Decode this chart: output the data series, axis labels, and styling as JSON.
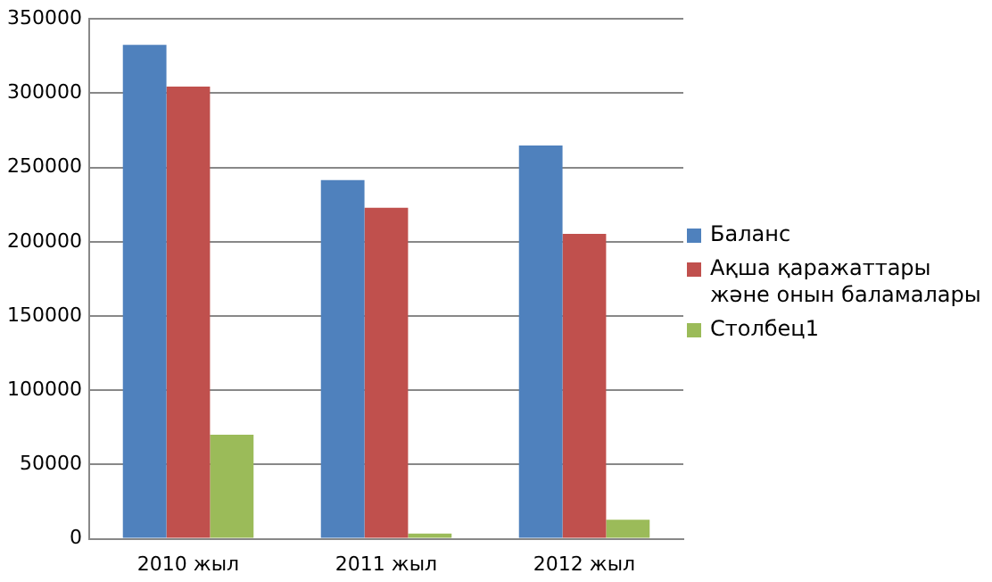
{
  "chart_data": {
    "type": "bar",
    "categories": [
      "2010 жыл",
      "2011 жыл",
      "2012 жыл"
    ],
    "series": [
      {
        "name": "Баланс",
        "color": "#4f81bd",
        "values": [
          332500,
          241500,
          264800
        ]
      },
      {
        "name": "Ақша қаражаттары және онын баламалары",
        "color": "#c0504d",
        "values": [
          304500,
          222800,
          205300
        ]
      },
      {
        "name": "Столбец1",
        "color": "#9bbb59",
        "values": [
          70000,
          3500,
          12800
        ]
      }
    ],
    "ylim": [
      0,
      350000
    ],
    "yticks": [
      0,
      50000,
      100000,
      150000,
      200000,
      250000,
      300000,
      350000
    ],
    "grid": "y",
    "legend": "right"
  }
}
